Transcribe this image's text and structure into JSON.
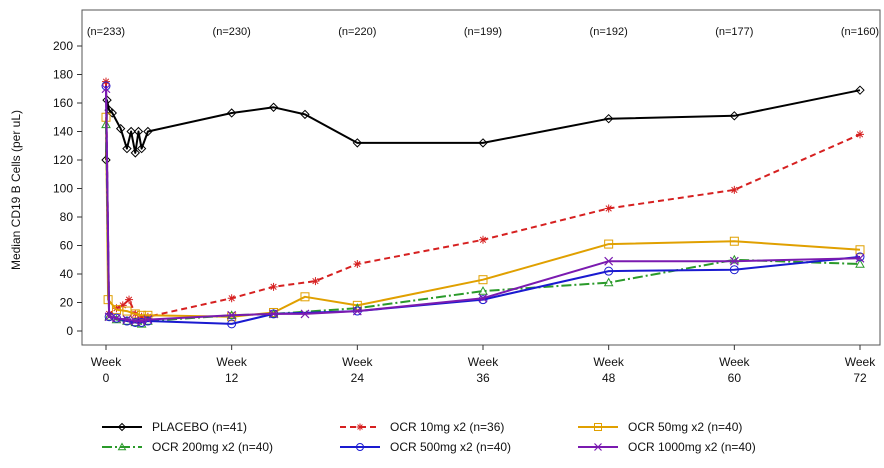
{
  "chart_data": {
    "type": "line",
    "ylabel": "Median CD19 B Cells (per uL)",
    "xlabel": "",
    "ylim": [
      0,
      200
    ],
    "xlim": [
      0,
      72
    ],
    "yticks": [
      0,
      20,
      40,
      60,
      80,
      100,
      120,
      140,
      160,
      180,
      200
    ],
    "xticks": [
      {
        "value": 0,
        "line1": "Week",
        "line2": "0"
      },
      {
        "value": 12,
        "line1": "Week",
        "line2": "12"
      },
      {
        "value": 24,
        "line1": "Week",
        "line2": "24"
      },
      {
        "value": 36,
        "line1": "Week",
        "line2": "36"
      },
      {
        "value": 48,
        "line1": "Week",
        "line2": "48"
      },
      {
        "value": 60,
        "line1": "Week",
        "line2": "60"
      },
      {
        "value": 72,
        "line1": "Week",
        "line2": "72"
      }
    ],
    "n_labels": [
      {
        "x": 0,
        "text": "(n=233)"
      },
      {
        "x": 12,
        "text": "(n=230)"
      },
      {
        "x": 24,
        "text": "(n=220)"
      },
      {
        "x": 36,
        "text": "(n=199)"
      },
      {
        "x": 48,
        "text": "(n=192)"
      },
      {
        "x": 60,
        "text": "(n=177)"
      },
      {
        "x": 72,
        "text": "(n=160)"
      }
    ],
    "series": [
      {
        "name": "PLACEBO (n=41)",
        "color": "#000000",
        "dash": "",
        "marker": "diamond",
        "points": [
          [
            0,
            120
          ],
          [
            0.1,
            162
          ],
          [
            0.3,
            155
          ],
          [
            0.6,
            153
          ],
          [
            1.4,
            142
          ],
          [
            2,
            128
          ],
          [
            2.4,
            140
          ],
          [
            2.8,
            125
          ],
          [
            3.1,
            140
          ],
          [
            3.4,
            128
          ],
          [
            4,
            140
          ],
          [
            12,
            153
          ],
          [
            16,
            157
          ],
          [
            19,
            152
          ],
          [
            24,
            132
          ],
          [
            36,
            132
          ],
          [
            48,
            149
          ],
          [
            60,
            151
          ],
          [
            72,
            169
          ]
        ]
      },
      {
        "name": "OCR 10mg x2 (n=36)",
        "color": "#d62020",
        "dash": "6,4",
        "marker": "star",
        "points": [
          [
            0,
            175
          ],
          [
            0.3,
            12
          ],
          [
            1,
            16
          ],
          [
            1.6,
            18
          ],
          [
            2.2,
            22
          ],
          [
            2.8,
            12
          ],
          [
            3.4,
            10
          ],
          [
            4,
            10
          ],
          [
            12,
            23
          ],
          [
            16,
            31
          ],
          [
            20,
            35
          ],
          [
            24,
            47
          ],
          [
            36,
            64
          ],
          [
            48,
            86
          ],
          [
            60,
            99
          ],
          [
            72,
            138
          ]
        ]
      },
      {
        "name": "OCR 50mg x2 (n=40)",
        "color": "#e0a000",
        "dash": "",
        "marker": "square",
        "points": [
          [
            0,
            150
          ],
          [
            0.2,
            22
          ],
          [
            1,
            15
          ],
          [
            2,
            14
          ],
          [
            2.8,
            12
          ],
          [
            3.4,
            11
          ],
          [
            4,
            11
          ],
          [
            12,
            10
          ],
          [
            16,
            13
          ],
          [
            19,
            24
          ],
          [
            24,
            18
          ],
          [
            36,
            36
          ],
          [
            48,
            61
          ],
          [
            60,
            63
          ],
          [
            72,
            57
          ]
        ]
      },
      {
        "name": "OCR 200mg x2 (n=40)",
        "color": "#2a9a2a",
        "dash": "10,3,2,3",
        "marker": "triangle",
        "points": [
          [
            0,
            145
          ],
          [
            0.3,
            10
          ],
          [
            1,
            8
          ],
          [
            2,
            7
          ],
          [
            2.8,
            6
          ],
          [
            3.4,
            5
          ],
          [
            4,
            7
          ],
          [
            12,
            11
          ],
          [
            16,
            12
          ],
          [
            24,
            16
          ],
          [
            36,
            28
          ],
          [
            48,
            34
          ],
          [
            60,
            50
          ],
          [
            72,
            47
          ]
        ]
      },
      {
        "name": "OCR 500mg x2 (n=40)",
        "color": "#1a1ad0",
        "dash": "",
        "marker": "circle",
        "points": [
          [
            0,
            172
          ],
          [
            0.3,
            10
          ],
          [
            1,
            9
          ],
          [
            2,
            7
          ],
          [
            2.8,
            6
          ],
          [
            3.4,
            6
          ],
          [
            4,
            7
          ],
          [
            12,
            5
          ],
          [
            16,
            12
          ],
          [
            24,
            14
          ],
          [
            36,
            22
          ],
          [
            48,
            42
          ],
          [
            60,
            43
          ],
          [
            72,
            52
          ]
        ]
      },
      {
        "name": "OCR 1000mg x2 (n=40)",
        "color": "#7a1ab0",
        "dash": "",
        "marker": "x",
        "points": [
          [
            0,
            170
          ],
          [
            0.3,
            10
          ],
          [
            1,
            9
          ],
          [
            2,
            8
          ],
          [
            2.8,
            7
          ],
          [
            3.4,
            7
          ],
          [
            4,
            8
          ],
          [
            12,
            11
          ],
          [
            16,
            12
          ],
          [
            19,
            12
          ],
          [
            24,
            14
          ],
          [
            36,
            23
          ],
          [
            48,
            49
          ],
          [
            60,
            49
          ],
          [
            72,
            51
          ]
        ]
      }
    ]
  }
}
